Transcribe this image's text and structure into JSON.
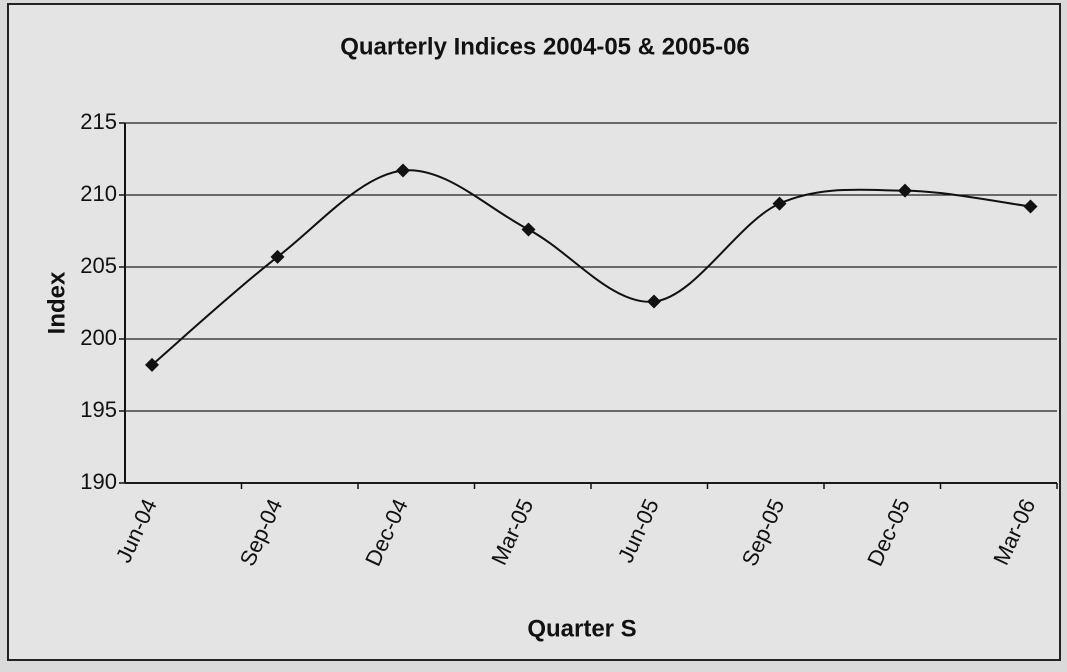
{
  "chart_data": {
    "type": "line",
    "title": "Quarterly Indices 2004-05 & 2005-06",
    "x_label": "Quarter S",
    "y_label": "Index",
    "categories": [
      "Jun-04",
      "Sep-04",
      "Dec-04",
      "Mar-05",
      "Jun-05",
      "Sep-05",
      "Dec-05",
      "Mar-06"
    ],
    "series": [
      {
        "name": "Index",
        "color": "#111111",
        "values": [
          198.2,
          205.7,
          211.7,
          207.6,
          202.6,
          209.4,
          210.3,
          209.2
        ]
      }
    ],
    "ylim": [
      190,
      215
    ],
    "yticks": [
      190,
      195,
      200,
      205,
      210,
      215
    ],
    "grid": true,
    "smooth": true,
    "marker": "diamond"
  }
}
